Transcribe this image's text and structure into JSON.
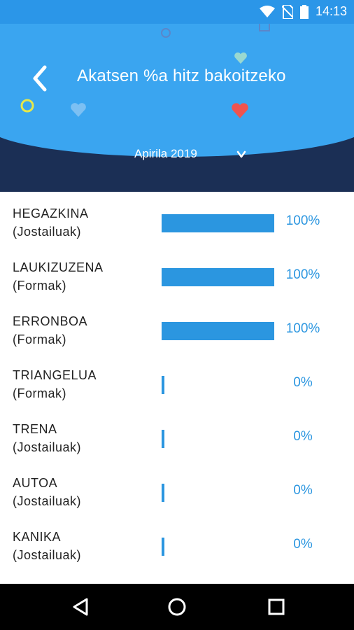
{
  "status_bar": {
    "time": "14:13"
  },
  "header": {
    "title": "Akatsen %a hitz bakoitzeko",
    "back_icon": "chevron-left-icon",
    "colors": {
      "blue": "#3aa5f0",
      "navy": "#1b2f55"
    }
  },
  "month_selector": {
    "label": "Apirila 2019",
    "chevron": "chevron-down-icon"
  },
  "items": [
    {
      "word": "HEGAZKINA",
      "category": "(Jostailuak)",
      "percent_label": "100%",
      "value": 100
    },
    {
      "word": "LAUKIZUZENA",
      "category": "(Formak)",
      "percent_label": "100%",
      "value": 100
    },
    {
      "word": "ERRONBOA",
      "category": "(Formak)",
      "percent_label": "100%",
      "value": 100
    },
    {
      "word": "TRIANGELUA",
      "category": "(Formak)",
      "percent_label": "0%",
      "value": 0
    },
    {
      "word": "TRENA",
      "category": "(Jostailuak)",
      "percent_label": "0%",
      "value": 0
    },
    {
      "word": "AUTOA",
      "category": "(Jostailuak)",
      "percent_label": "0%",
      "value": 0
    },
    {
      "word": "KANIKA",
      "category": "(Jostailuak)",
      "percent_label": "0%",
      "value": 0
    }
  ],
  "nav_bar": {
    "back": "triangle-back-icon",
    "home": "circle-home-icon",
    "recents": "square-recents-icon"
  }
}
